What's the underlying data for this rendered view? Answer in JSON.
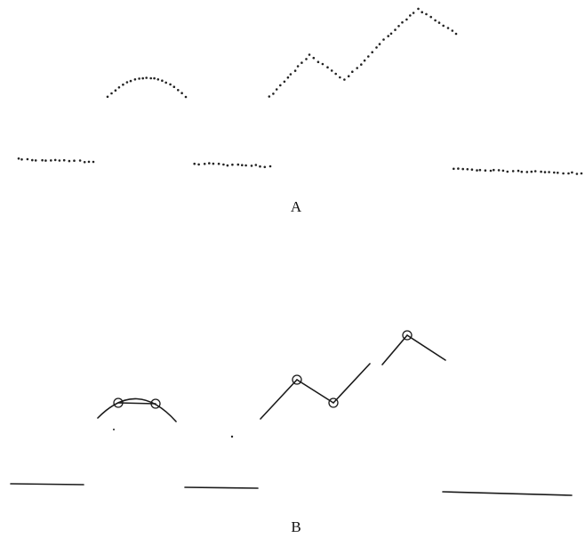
{
  "panel_a": {
    "label": "A"
  },
  "panel_b": {
    "label": "B"
  }
}
